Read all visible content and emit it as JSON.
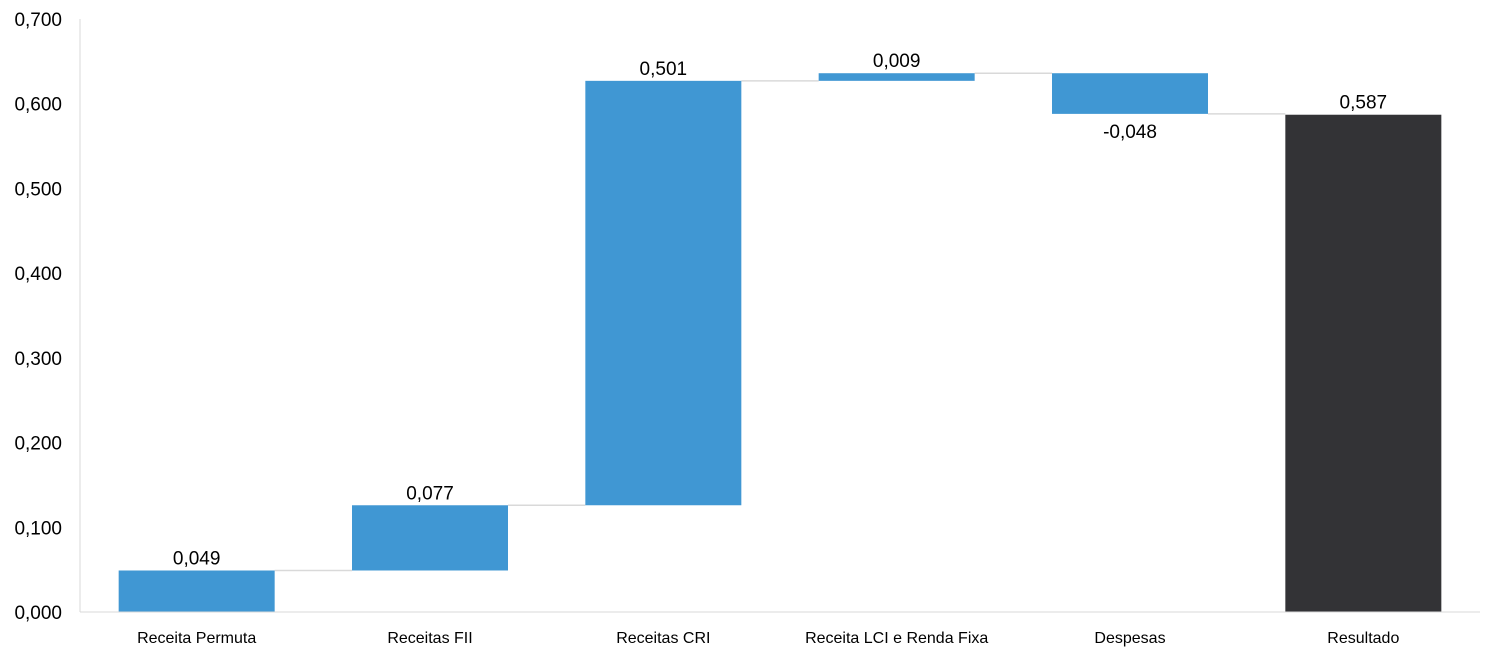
{
  "chart_data": {
    "type": "waterfall",
    "categories": [
      "Receita Permuta",
      "Receitas FII",
      "Receitas CRI",
      "Receita LCI e Renda Fixa",
      "Despesas",
      "Resultado"
    ],
    "values": [
      0.049,
      0.077,
      0.501,
      0.009,
      -0.048,
      0.587
    ],
    "data_labels": [
      "0,049",
      "0,077",
      "0,501",
      "0,009",
      "-0,048",
      "0,587"
    ],
    "total_index": 5,
    "ylim": [
      0,
      0.7
    ],
    "yticks": [
      0,
      0.1,
      0.2,
      0.3,
      0.4,
      0.5,
      0.6,
      0.7
    ],
    "ytick_labels": [
      "0,000",
      "0,100",
      "0,200",
      "0,300",
      "0,400",
      "0,500",
      "0,600",
      "0,700"
    ],
    "title": "",
    "xlabel": "",
    "ylabel": "",
    "grid": false,
    "legend": false,
    "colors": {
      "step": "#4097D3",
      "total": "#333336",
      "connector": "#D9D9D9",
      "axis": "#D9D9D9"
    }
  }
}
